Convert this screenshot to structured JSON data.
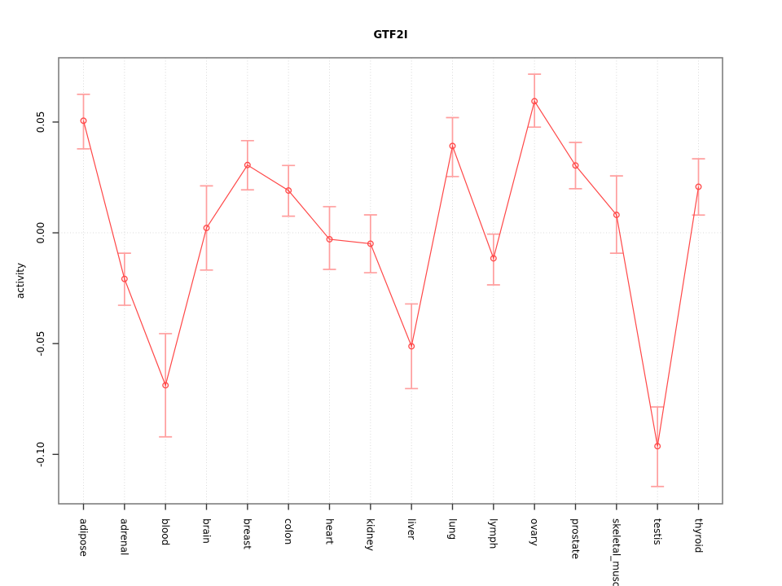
{
  "chart_data": {
    "type": "line",
    "title": "GTF2I",
    "xlabel": "",
    "ylabel": "activity",
    "categories": [
      "adipose",
      "adrenal",
      "blood",
      "brain",
      "breast",
      "colon",
      "heart",
      "kidney",
      "liver",
      "lung",
      "lymph",
      "ovary",
      "prostate",
      "skeletal_muscle",
      "testis",
      "thyroid"
    ],
    "series": [
      {
        "name": "activity",
        "values": [
          0.0506,
          -0.0208,
          -0.0688,
          0.0022,
          0.0306,
          0.0191,
          -0.0029,
          -0.0049,
          -0.0512,
          0.0392,
          -0.0115,
          0.0594,
          0.0304,
          0.0081,
          -0.0963,
          0.0208
        ],
        "error_high": [
          0.0625,
          -0.0092,
          -0.0455,
          0.0212,
          0.0416,
          0.0304,
          0.0118,
          0.0081,
          -0.0321,
          0.052,
          -0.0006,
          0.0716,
          0.0408,
          0.0257,
          -0.0786,
          0.0334
        ],
        "error_low": [
          0.0379,
          -0.0327,
          -0.0921,
          -0.0168,
          0.0194,
          0.0075,
          -0.0165,
          -0.018,
          -0.0703,
          0.0254,
          -0.0235,
          0.0477,
          0.0199,
          -0.0092,
          -0.1145,
          0.008
        ]
      }
    ],
    "yticks": [
      0.05,
      0.0,
      -0.05,
      -0.1
    ],
    "ytick_labels": [
      "0.05",
      "0.00",
      "-0.05",
      "-0.10"
    ],
    "ylim": [
      -0.1223,
      0.079
    ],
    "legend": "none",
    "grid": {
      "vertical_dotted_per_category": true,
      "horizontal_dotted_at_zero": true
    },
    "colors": {
      "line": "#ff4747",
      "point": "#ff4747",
      "error_bar": "#ff9e9e",
      "grid": "#d9d9d9",
      "box": "#7e7e7e",
      "tick": "#383838",
      "text": "#000000",
      "background": "#ffffff"
    }
  }
}
